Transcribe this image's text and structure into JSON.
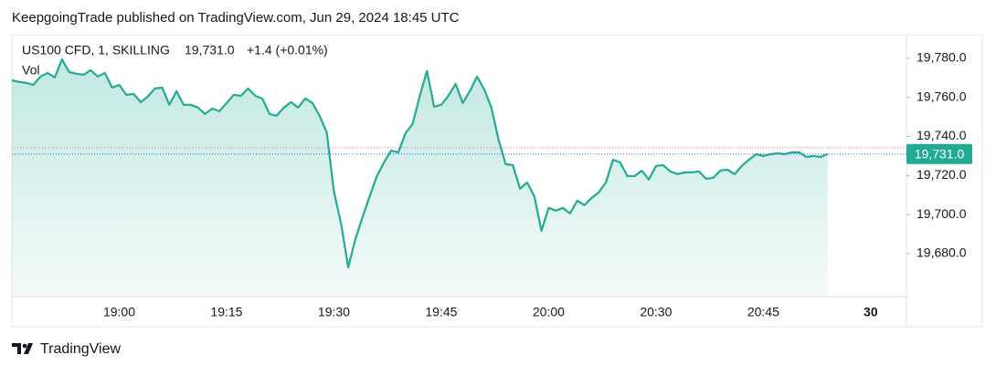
{
  "header": {
    "publisher": "KeepgoingTrade published on TradingView.com, Jun 29, 2024 18:45 UTC"
  },
  "chart_data": {
    "type": "area",
    "symbol": "US100 CFD, 1, SKILLING",
    "last_label": "19,731.0",
    "change": "+1.4 (+0.01%)",
    "indicator": "Vol",
    "color": "#22ab94",
    "prev_close": 19734.2,
    "prev_close_color": "#f23645",
    "last_line_color": "#2962ff",
    "categories": [
      null,
      null,
      null,
      null,
      null,
      null,
      null,
      null,
      null,
      null,
      null,
      null,
      null,
      null,
      null,
      "19:00",
      null,
      null,
      null,
      null,
      null,
      null,
      null,
      null,
      null,
      null,
      null,
      null,
      null,
      null,
      "19:15",
      null,
      null,
      null,
      null,
      null,
      null,
      null,
      null,
      null,
      null,
      null,
      null,
      null,
      null,
      "19:30",
      null,
      null,
      null,
      null,
      null,
      null,
      null,
      null,
      null,
      null,
      null,
      null,
      null,
      null,
      "19:45",
      null,
      null,
      null,
      null,
      null,
      null,
      null,
      null,
      null,
      null,
      null,
      null,
      null,
      null,
      "20:00",
      null,
      null,
      null,
      null,
      null,
      null,
      null,
      null,
      null,
      null,
      null,
      null,
      null,
      null,
      "20:30",
      null,
      null,
      null,
      null,
      null,
      null,
      null,
      null,
      null,
      null,
      null,
      null,
      null,
      null,
      "20:45",
      null,
      null,
      null,
      null,
      null,
      null,
      null,
      null,
      null,
      null,
      null,
      null,
      null,
      null,
      "30",
      null,
      null,
      null,
      null,
      null
    ],
    "values": [
      19768.8,
      19767.9,
      19767.4,
      19766.4,
      19770.7,
      19772.5,
      19770.2,
      19779.5,
      19773.0,
      19772.1,
      19771.6,
      19773.9,
      19770.7,
      19772.5,
      19765.0,
      19766.4,
      19761.3,
      19761.8,
      19757.6,
      19760.4,
      19764.6,
      19765.0,
      19756.2,
      19763.2,
      19756.2,
      19756.2,
      19754.8,
      19751.5,
      19754.3,
      19752.9,
      19757.1,
      19761.3,
      19760.8,
      19764.6,
      19760.8,
      19759.4,
      19751.5,
      19750.6,
      19754.8,
      19757.6,
      19754.8,
      19759.4,
      19757.1,
      19750.6,
      19742.1,
      19711.8,
      19695.4,
      19673.0,
      19687.5,
      19698.7,
      19709.4,
      19719.7,
      19726.7,
      19732.8,
      19731.8,
      19741.7,
      19746.4,
      19760.8,
      19773.5,
      19755.2,
      19756.2,
      19760.8,
      19766.9,
      19757.1,
      19763.2,
      19770.7,
      19764.1,
      19754.8,
      19738.4,
      19725.8,
      19725.3,
      19713.2,
      19716.4,
      19709.4,
      19691.7,
      19703.4,
      19702.0,
      19703.4,
      19700.6,
      19707.1,
      19704.8,
      19708.5,
      19711.3,
      19716.4,
      19728.1,
      19726.7,
      19719.7,
      19719.7,
      19722.5,
      19717.9,
      19724.9,
      19725.3,
      19722.1,
      19720.7,
      19721.6,
      19721.6,
      19722.1,
      19718.3,
      19718.8,
      19722.5,
      19723.0,
      19720.7,
      19724.9,
      19728.1,
      19730.9,
      19730.0,
      19730.9,
      19731.4,
      19730.9,
      19731.9,
      19731.9,
      19729.5,
      19730.0,
      19729.5,
      19731.0,
      null,
      null,
      null,
      null,
      null,
      null,
      null,
      null,
      null,
      null,
      null
    ],
    "ylim": [
      19658.0,
      19792.1
    ],
    "yticks": [
      {
        "value": 19680,
        "label": "19,680.0"
      },
      {
        "value": 19700,
        "label": "19,700.0"
      },
      {
        "value": 19720,
        "label": "19,720.0"
      },
      {
        "value": 19740,
        "label": "19,740.0"
      },
      {
        "value": 19760,
        "label": "19,760.0"
      },
      {
        "value": 19780,
        "label": "19,780.0"
      }
    ],
    "grid": false
  },
  "footer": {
    "brand": "TradingView"
  }
}
